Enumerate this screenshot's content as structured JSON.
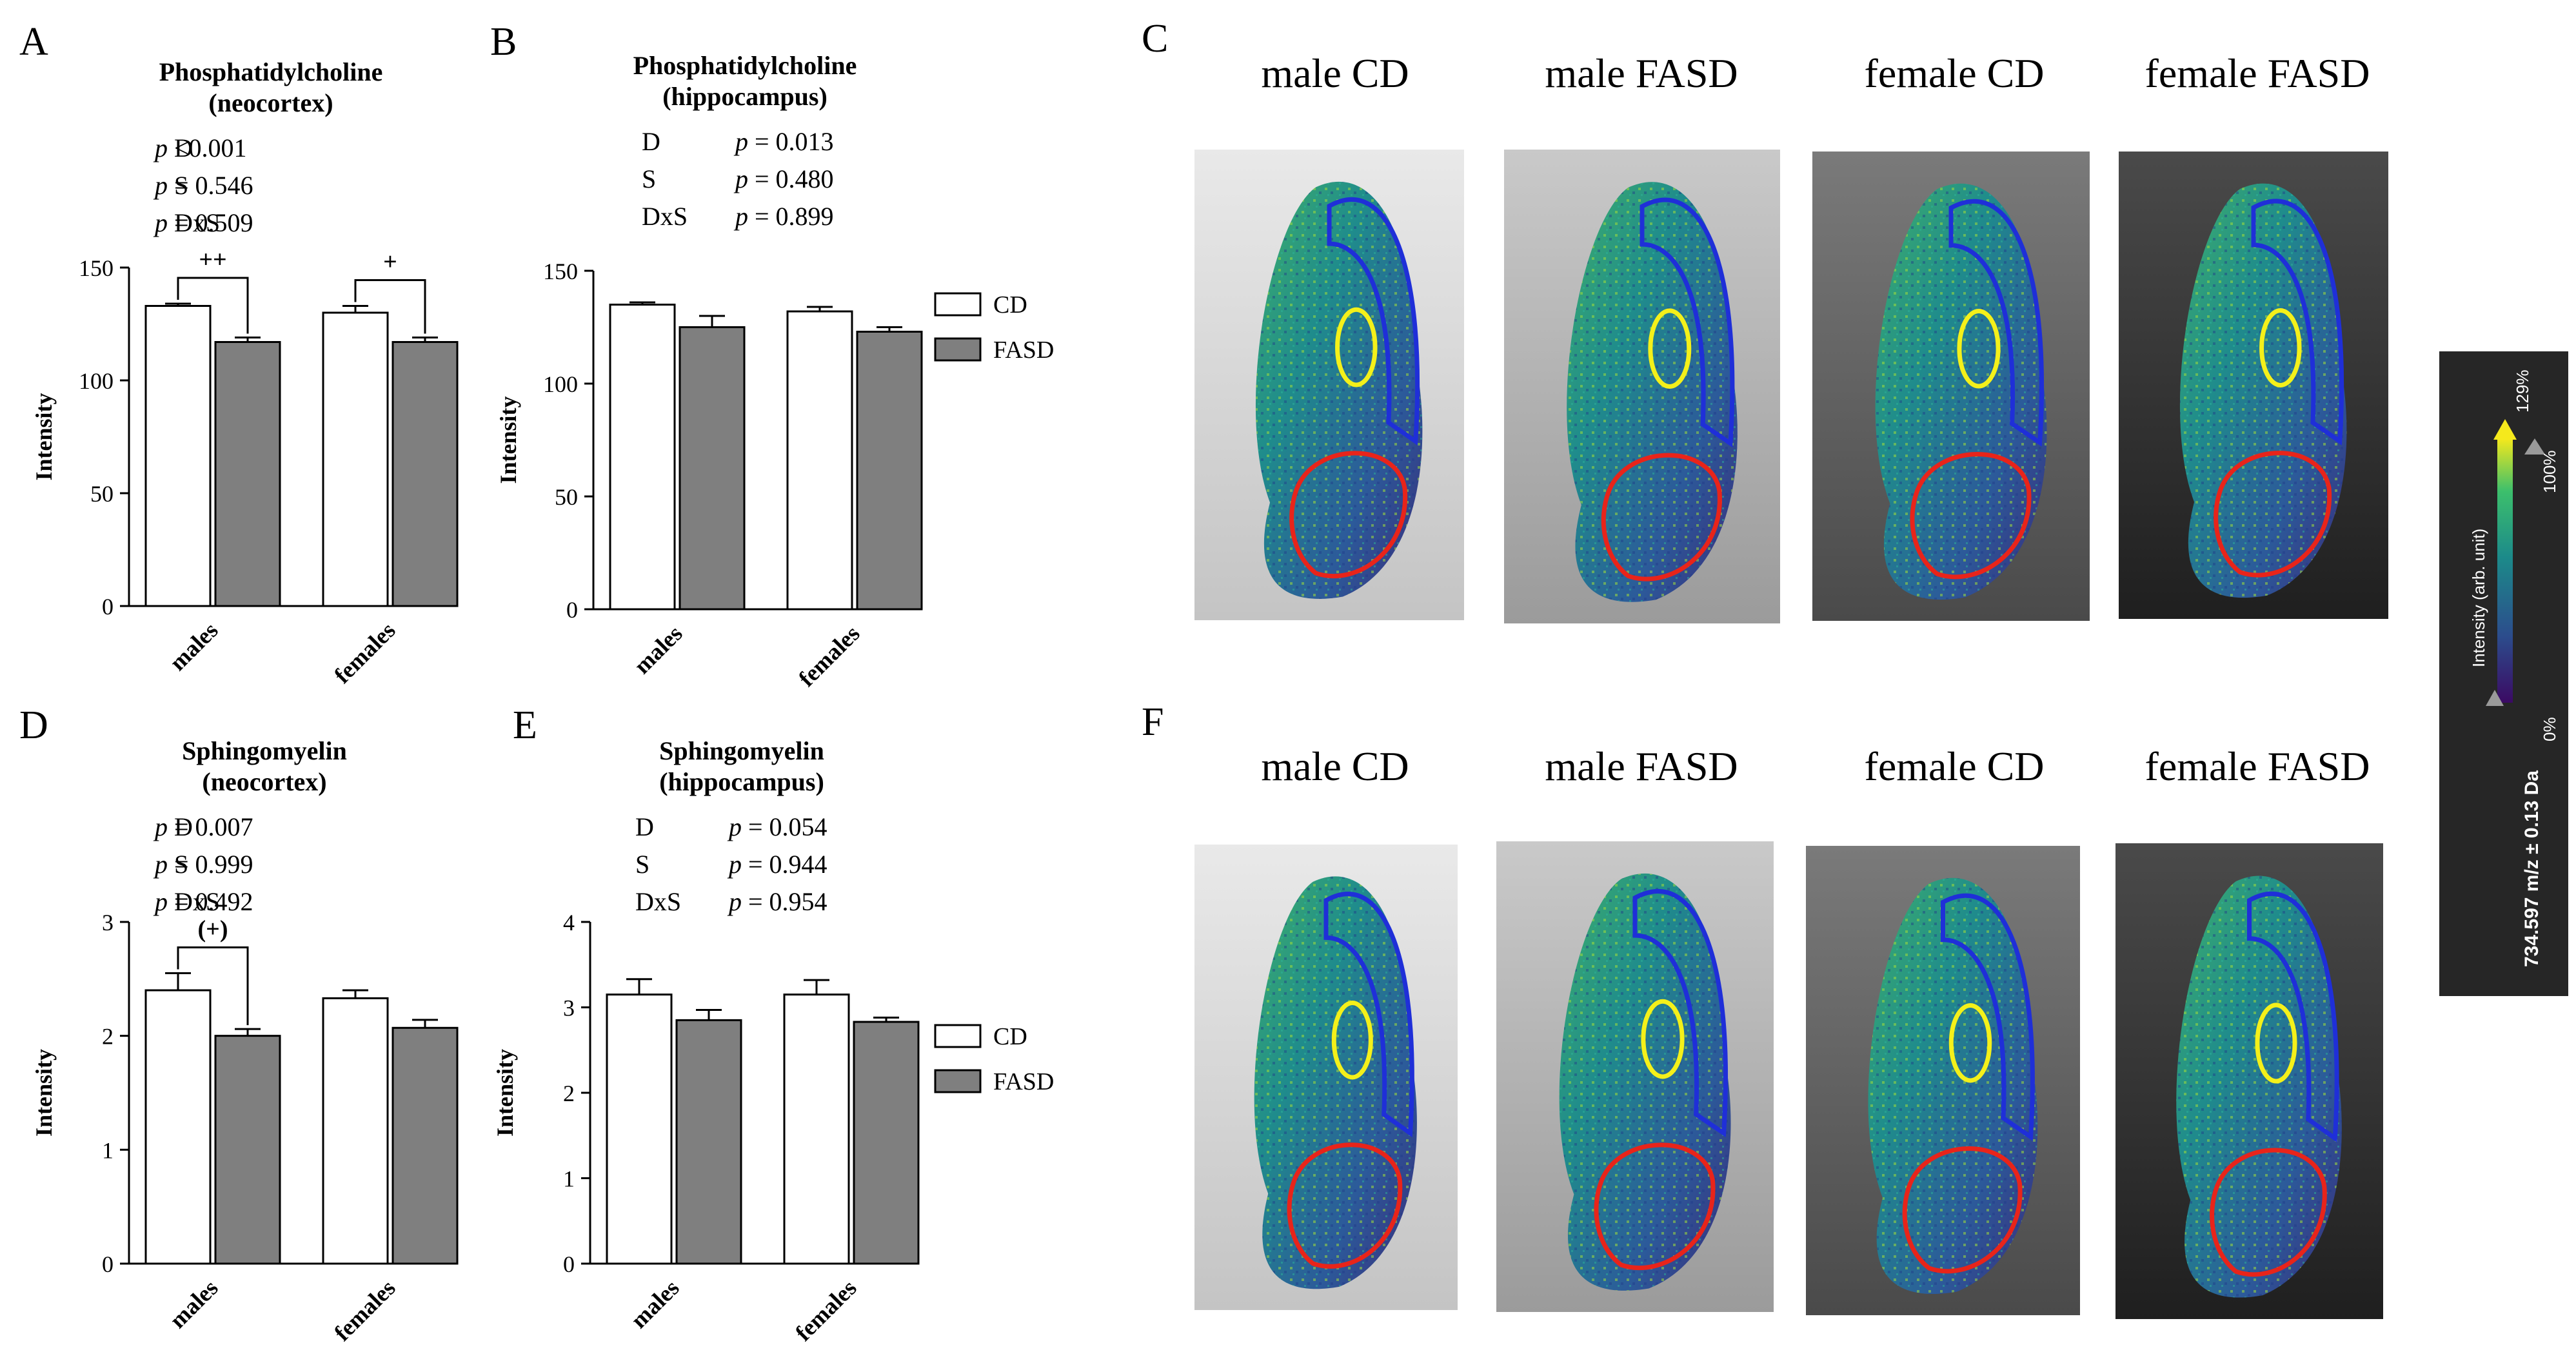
{
  "chart_data": [
    {
      "panel_letter": "A",
      "type": "bar",
      "title_line1": "Phosphatidylcholine",
      "title_line2": "(neocortex)",
      "stats": [
        {
          "label": "D",
          "p": "p",
          "op": " <0.001"
        },
        {
          "label": "S",
          "p": "p",
          "op": " = 0.546"
        },
        {
          "label": "DxS",
          "p": "p",
          "op": " = 0.509"
        }
      ],
      "categories": [
        "males",
        "females"
      ],
      "series": [
        {
          "name": "CD",
          "color": "#ffffff",
          "values": [
            133,
            130
          ],
          "errors": [
            1,
            3
          ]
        },
        {
          "name": "FASD",
          "color": "#7f7f7f",
          "values": [
            117,
            117
          ],
          "errors": [
            2,
            2
          ]
        }
      ],
      "ylabel": "Intensity",
      "ylim": [
        0,
        150
      ],
      "yticks": [
        "0",
        "50",
        "100",
        "150"
      ],
      "brackets": [
        {
          "category": 0,
          "label": "++"
        },
        {
          "category": 1,
          "label": "+"
        }
      ]
    },
    {
      "panel_letter": "B",
      "type": "bar",
      "title_line1": "Phosphatidylcholine",
      "title_line2": "(hippocampus)",
      "stats": [
        {
          "label": "D",
          "p": "p",
          "op": " = 0.013"
        },
        {
          "label": "S",
          "p": "p",
          "op": " = 0.480"
        },
        {
          "label": "DxS",
          "p": "p",
          "op": " = 0.899"
        }
      ],
      "categories": [
        "males",
        "females"
      ],
      "series": [
        {
          "name": "CD",
          "color": "#ffffff",
          "values": [
            135,
            132
          ],
          "errors": [
            1,
            2
          ]
        },
        {
          "name": "FASD",
          "color": "#7f7f7f",
          "values": [
            125,
            123
          ],
          "errors": [
            5,
            2
          ]
        }
      ],
      "ylabel": "Intensity",
      "ylim": [
        0,
        150
      ],
      "yticks": [
        "0",
        "50",
        "100",
        "150"
      ],
      "legend": [
        "CD",
        "FASD"
      ],
      "brackets": []
    },
    {
      "panel_letter": "D",
      "type": "bar",
      "title_line1": "Sphingomyelin",
      "title_line2": "(neocortex)",
      "stats": [
        {
          "label": "D",
          "p": "p",
          "op": " = 0.007"
        },
        {
          "label": "S",
          "p": "p",
          "op": " = 0.999"
        },
        {
          "label": "DxS",
          "p": "p",
          "op": " = 0.492"
        }
      ],
      "categories": [
        "males",
        "females"
      ],
      "series": [
        {
          "name": "CD",
          "color": "#ffffff",
          "values": [
            2.4,
            2.33
          ],
          "errors": [
            0.15,
            0.07
          ]
        },
        {
          "name": "FASD",
          "color": "#7f7f7f",
          "values": [
            2.0,
            2.07
          ],
          "errors": [
            0.06,
            0.07
          ]
        }
      ],
      "ylabel": "Intensity",
      "ylim": [
        0,
        3
      ],
      "yticks": [
        "0",
        "1",
        "2",
        "3"
      ],
      "brackets": [
        {
          "category": 0,
          "label": "(+)"
        }
      ]
    },
    {
      "panel_letter": "E",
      "type": "bar",
      "title_line1": "Sphingomyelin",
      "title_line2": "(hippocampus)",
      "stats": [
        {
          "label": "D",
          "p": "p",
          "op": " = 0.054"
        },
        {
          "label": "S",
          "p": "p",
          "op": " = 0.944"
        },
        {
          "label": "DxS",
          "p": "p",
          "op": " = 0.954"
        }
      ],
      "categories": [
        "males",
        "females"
      ],
      "series": [
        {
          "name": "CD",
          "color": "#ffffff",
          "values": [
            3.15,
            3.15
          ],
          "errors": [
            0.18,
            0.17
          ]
        },
        {
          "name": "FASD",
          "color": "#7f7f7f",
          "values": [
            2.85,
            2.83
          ],
          "errors": [
            0.12,
            0.05
          ]
        }
      ],
      "ylabel": "Intensity",
      "ylim": [
        0,
        4
      ],
      "yticks": [
        "0",
        "1",
        "2",
        "3",
        "4"
      ],
      "legend": [
        "CD",
        "FASD"
      ],
      "brackets": []
    }
  ],
  "image_panels": [
    {
      "letter": "C",
      "titles": [
        "male CD",
        "male FASD",
        "female CD",
        "female FASD"
      ],
      "backgrounds": [
        "light-grey",
        "mid-grey",
        "dark-grey",
        "very-dark-grey"
      ]
    },
    {
      "letter": "F",
      "titles": [
        "male CD",
        "male FASD",
        "female CD",
        "female FASD"
      ],
      "backgrounds": [
        "light-grey",
        "mid-grey",
        "dark-grey",
        "very-dark-grey"
      ]
    }
  ],
  "region_colors": {
    "neocortex": "#1f2fd8",
    "hippocampus": "#f4f01a",
    "cerebellum": "#e8241a"
  },
  "colorbar": {
    "top_label": "129%",
    "upper_mark": "100%",
    "lower_mark": "0%",
    "axis_label": "Intensity (arb. unit)",
    "mass_label": "734.597 m/z ± 0.13 Da",
    "colors": [
      "#3b0a63",
      "#2c4c8c",
      "#1c8a8a",
      "#3cbf6c",
      "#f5e91c"
    ]
  }
}
